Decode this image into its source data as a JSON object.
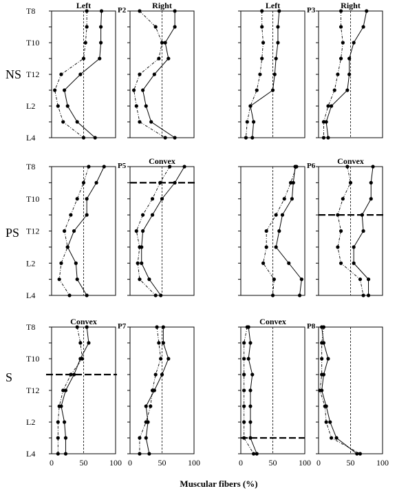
{
  "chart_data": {
    "type": "line",
    "xlabel": "Muscular fibers (%)",
    "xlim": [
      0,
      100
    ],
    "x_ticks": [
      0,
      50,
      100
    ],
    "y_levels": [
      "T8",
      "T9",
      "T10",
      "T11",
      "T12",
      "L1",
      "L2",
      "L3",
      "L4"
    ],
    "y_tick_labels": [
      "T8",
      "T10",
      "T12",
      "L2",
      "L4"
    ],
    "rows": [
      {
        "label": "NS"
      },
      {
        "label": "PS"
      },
      {
        "label": "S"
      }
    ],
    "panels": [
      {
        "row": 0,
        "col": 0,
        "title": "Left",
        "tag": "P2",
        "ref_line": 50,
        "divider": null,
        "solid": [
          78,
          77,
          77,
          75,
          45,
          20,
          25,
          40,
          68
        ],
        "dashed": [
          55,
          55,
          53,
          50,
          15,
          5,
          10,
          18,
          50
        ]
      },
      {
        "row": 0,
        "col": 1,
        "title": "Right",
        "tag": "",
        "ref_line": 50,
        "divider": null,
        "solid": [
          70,
          70,
          55,
          60,
          38,
          20,
          25,
          33,
          70
        ],
        "dashed": [
          15,
          40,
          50,
          45,
          15,
          6,
          10,
          15,
          55
        ]
      },
      {
        "row": 0,
        "col": 2,
        "title": "Left",
        "tag": "P3",
        "ref_line": 50,
        "divider": null,
        "solid": [
          60,
          58,
          58,
          55,
          53,
          50,
          15,
          20,
          18
        ],
        "dashed": [
          33,
          33,
          35,
          33,
          30,
          25,
          15,
          10,
          8
        ]
      },
      {
        "row": 0,
        "col": 3,
        "title": "Right",
        "tag": "",
        "ref_line": 50,
        "divider": null,
        "solid": [
          75,
          70,
          55,
          48,
          48,
          45,
          20,
          12,
          15
        ],
        "dashed": [
          35,
          35,
          38,
          35,
          30,
          25,
          15,
          8,
          8
        ]
      },
      {
        "row": 1,
        "col": 0,
        "title": "",
        "tag": "P5",
        "ref_line": 50,
        "divider": null,
        "solid": [
          82,
          70,
          55,
          55,
          35,
          25,
          38,
          40,
          55
        ],
        "dashed": [
          58,
          50,
          40,
          30,
          20,
          25,
          15,
          12,
          28
        ]
      },
      {
        "row": 1,
        "col": 1,
        "title": "Convex",
        "tag": "",
        "ref_line": 50,
        "divider": 1,
        "solid": [
          85,
          70,
          50,
          35,
          20,
          18,
          18,
          30,
          48
        ],
        "dashed": [
          62,
          47,
          35,
          20,
          10,
          15,
          12,
          15,
          40
        ]
      },
      {
        "row": 1,
        "col": 2,
        "title": "",
        "tag": "P6",
        "ref_line": 50,
        "divider": null,
        "solid": [
          85,
          82,
          80,
          65,
          60,
          55,
          75,
          95,
          92
        ],
        "dashed": [
          87,
          78,
          68,
          55,
          40,
          40,
          35,
          52,
          50
        ]
      },
      {
        "row": 1,
        "col": 3,
        "title": "Convex",
        "tag": "",
        "ref_line": 50,
        "divider": 3,
        "solid": [
          85,
          82,
          82,
          68,
          70,
          55,
          55,
          78,
          78
        ],
        "dashed": [
          45,
          50,
          38,
          30,
          35,
          30,
          35,
          65,
          70
        ]
      },
      {
        "row": 2,
        "col": 0,
        "title": "Convex",
        "tag": "P7",
        "ref_line": 50,
        "divider": 3,
        "solid": [
          55,
          58,
          45,
          35,
          22,
          15,
          20,
          22,
          22
        ],
        "dashed": [
          40,
          45,
          48,
          30,
          18,
          12,
          10,
          10,
          10
        ]
      },
      {
        "row": 2,
        "col": 1,
        "title": "",
        "tag": "",
        "ref_line": 50,
        "divider": null,
        "solid": [
          52,
          52,
          60,
          50,
          38,
          25,
          28,
          25,
          30
        ],
        "dashed": [
          42,
          45,
          48,
          40,
          35,
          32,
          25,
          15,
          15
        ]
      },
      {
        "row": 2,
        "col": 2,
        "title": "Convex",
        "tag": "P8",
        "ref_line": 50,
        "divider": 7,
        "solid": [
          12,
          15,
          12,
          18,
          15,
          15,
          15,
          15,
          25
        ],
        "dashed": [
          10,
          5,
          5,
          5,
          5,
          5,
          5,
          5,
          20
        ]
      },
      {
        "row": 2,
        "col": 3,
        "title": "",
        "tag": "",
        "ref_line": 50,
        "divider": null,
        "solid": [
          5,
          8,
          15,
          8,
          5,
          12,
          18,
          28,
          60
        ],
        "dashed": [
          8,
          5,
          5,
          5,
          2,
          10,
          12,
          20,
          65
        ]
      }
    ]
  }
}
